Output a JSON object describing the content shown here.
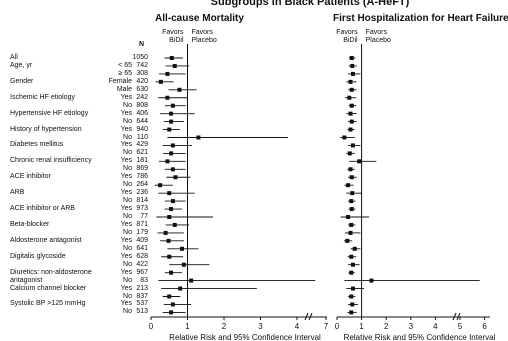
{
  "title": "Subgroups in Black Patients (A-HeFT)",
  "n_header": "N",
  "favors": {
    "left": [
      "Favors",
      "BiDil"
    ],
    "right": [
      "Favors",
      "Placebo"
    ]
  },
  "rows": [
    {
      "label": "All",
      "sub": "",
      "n": "1050"
    },
    {
      "label": "Age, yr",
      "sub": "< 65",
      "n": "742"
    },
    {
      "label": "",
      "sub": "≥ 65",
      "n": "308"
    },
    {
      "label": "Gender",
      "sub": "Female",
      "n": "420"
    },
    {
      "label": "",
      "sub": "Male",
      "n": "630"
    },
    {
      "label": "Ischemic HF etiology",
      "sub": "Yes",
      "n": "242"
    },
    {
      "label": "",
      "sub": "No",
      "n": "808"
    },
    {
      "label": "Hypertensive HF etiology",
      "sub": "Yes",
      "n": "406"
    },
    {
      "label": "",
      "sub": "No",
      "n": "644"
    },
    {
      "label": "History of hypertension",
      "sub": "Yes",
      "n": "940"
    },
    {
      "label": "",
      "sub": "No",
      "n": "110"
    },
    {
      "label": "Diabetes mellitus",
      "sub": "Yes",
      "n": "429"
    },
    {
      "label": "",
      "sub": "No",
      "n": "621"
    },
    {
      "label": "Chronic renal insufficiency",
      "sub": "Yes",
      "n": "181"
    },
    {
      "label": "",
      "sub": "No",
      "n": "869"
    },
    {
      "label": "ACE inhibitor",
      "sub": "Yes",
      "n": "786"
    },
    {
      "label": "",
      "sub": "No",
      "n": "264"
    },
    {
      "label": "ARB",
      "sub": "Yes",
      "n": "236"
    },
    {
      "label": "",
      "sub": "No",
      "n": "814"
    },
    {
      "label": "ACE inhibitor or ARB",
      "sub": "Yes",
      "n": "973"
    },
    {
      "label": "",
      "sub": "No",
      "n": "77"
    },
    {
      "label": "Beta-blocker",
      "sub": "Yes",
      "n": "871"
    },
    {
      "label": "",
      "sub": "No",
      "n": "179"
    },
    {
      "label": "Aldosterone antagonist",
      "sub": "Yes",
      "n": "409"
    },
    {
      "label": "",
      "sub": "No",
      "n": "641"
    },
    {
      "label": "Digitalis glycoside",
      "sub": "Yes",
      "n": "628"
    },
    {
      "label": "",
      "sub": "No",
      "n": "422"
    },
    {
      "label": "Diuretics: non-aldosterone\nantagonist",
      "sub": "Yes",
      "n": "967"
    },
    {
      "label": "",
      "sub": "No",
      "n": "83"
    },
    {
      "label": "Calcium channel blocker",
      "sub": "Yes",
      "n": "213"
    },
    {
      "label": "",
      "sub": "No",
      "n": "837"
    },
    {
      "label": "Systolic BP >125 mmHg",
      "sub": "Yes",
      "n": "537"
    },
    {
      "label": "",
      "sub": "No",
      "n": "513"
    }
  ],
  "chart_data": [
    {
      "type": "forest",
      "title": "All-cause Mortality",
      "xlabel": "Relative Risk and 95% Confidence Interval",
      "xticks": [
        "0",
        "1",
        "2",
        "3",
        "4",
        "7"
      ],
      "xlim": [
        0,
        4.5
      ],
      "axis_break": true,
      "reference_line": 1,
      "estimates": [
        {
          "rr": 0.57,
          "lo": 0.37,
          "hi": 0.87
        },
        {
          "rr": 0.65,
          "lo": 0.4,
          "hi": 1.05
        },
        {
          "rr": 0.45,
          "lo": 0.22,
          "hi": 0.95
        },
        {
          "rr": 0.27,
          "lo": 0.12,
          "hi": 0.62
        },
        {
          "rr": 0.78,
          "lo": 0.48,
          "hi": 1.25
        },
        {
          "rr": 0.45,
          "lo": 0.2,
          "hi": 1.0
        },
        {
          "rr": 0.6,
          "lo": 0.38,
          "hi": 0.95
        },
        {
          "rr": 0.55,
          "lo": 0.25,
          "hi": 1.2
        },
        {
          "rr": 0.55,
          "lo": 0.35,
          "hi": 0.9
        },
        {
          "rr": 0.5,
          "lo": 0.32,
          "hi": 0.8
        },
        {
          "rr": 1.3,
          "lo": 0.45,
          "hi": 3.75
        },
        {
          "rr": 0.6,
          "lo": 0.32,
          "hi": 1.12
        },
        {
          "rr": 0.55,
          "lo": 0.33,
          "hi": 0.95
        },
        {
          "rr": 0.45,
          "lo": 0.22,
          "hi": 0.95
        },
        {
          "rr": 0.6,
          "lo": 0.38,
          "hi": 0.95
        },
        {
          "rr": 0.67,
          "lo": 0.42,
          "hi": 1.08
        },
        {
          "rr": 0.25,
          "lo": 0.1,
          "hi": 0.6
        },
        {
          "rr": 0.5,
          "lo": 0.2,
          "hi": 1.2
        },
        {
          "rr": 0.6,
          "lo": 0.38,
          "hi": 0.95
        },
        {
          "rr": 0.55,
          "lo": 0.37,
          "hi": 0.85
        },
        {
          "rr": 0.5,
          "lo": 0.15,
          "hi": 1.7
        },
        {
          "rr": 0.65,
          "lo": 0.4,
          "hi": 1.05
        },
        {
          "rr": 0.4,
          "lo": 0.18,
          "hi": 0.9
        },
        {
          "rr": 0.48,
          "lo": 0.25,
          "hi": 0.9
        },
        {
          "rr": 0.85,
          "lo": 0.45,
          "hi": 1.3
        },
        {
          "rr": 0.5,
          "lo": 0.28,
          "hi": 0.88
        },
        {
          "rr": 0.9,
          "lo": 0.5,
          "hi": 1.6
        },
        {
          "rr": 0.55,
          "lo": 0.38,
          "hi": 0.85
        },
        {
          "rr": 1.1,
          "lo": 0.2,
          "hi": 4.5
        },
        {
          "rr": 0.8,
          "lo": 0.28,
          "hi": 2.9
        },
        {
          "rr": 0.5,
          "lo": 0.32,
          "hi": 0.8
        },
        {
          "rr": 0.6,
          "lo": 0.35,
          "hi": 1.1
        },
        {
          "rr": 0.55,
          "lo": 0.32,
          "hi": 0.95
        }
      ]
    },
    {
      "type": "forest",
      "title": "First Hospitalization for Heart Failure",
      "xlabel": "Relative Risk and 95% Confidence Interval",
      "xticks": [
        "0",
        "1",
        "2",
        "3",
        "4",
        "5",
        "6"
      ],
      "xlim": [
        0,
        6
      ],
      "axis_break": true,
      "reference_line": 1,
      "estimates": [
        {
          "rr": 0.6,
          "lo": 0.48,
          "hi": 0.75
        },
        {
          "rr": 0.62,
          "lo": 0.48,
          "hi": 0.8
        },
        {
          "rr": 0.65,
          "lo": 0.45,
          "hi": 0.95
        },
        {
          "rr": 0.55,
          "lo": 0.38,
          "hi": 0.8
        },
        {
          "rr": 0.6,
          "lo": 0.45,
          "hi": 0.8
        },
        {
          "rr": 0.5,
          "lo": 0.32,
          "hi": 0.78
        },
        {
          "rr": 0.6,
          "lo": 0.47,
          "hi": 0.78
        },
        {
          "rr": 0.55,
          "lo": 0.38,
          "hi": 0.8
        },
        {
          "rr": 0.6,
          "lo": 0.45,
          "hi": 0.8
        },
        {
          "rr": 0.55,
          "lo": 0.43,
          "hi": 0.72
        },
        {
          "rr": 0.3,
          "lo": 0.13,
          "hi": 0.72
        },
        {
          "rr": 0.65,
          "lo": 0.45,
          "hi": 0.95
        },
        {
          "rr": 0.52,
          "lo": 0.38,
          "hi": 0.72
        },
        {
          "rr": 0.9,
          "lo": 0.5,
          "hi": 1.6
        },
        {
          "rr": 0.55,
          "lo": 0.42,
          "hi": 0.72
        },
        {
          "rr": 0.6,
          "lo": 0.45,
          "hi": 0.8
        },
        {
          "rr": 0.45,
          "lo": 0.3,
          "hi": 0.68
        },
        {
          "rr": 0.62,
          "lo": 0.38,
          "hi": 1.0
        },
        {
          "rr": 0.58,
          "lo": 0.45,
          "hi": 0.75
        },
        {
          "rr": 0.6,
          "lo": 0.47,
          "hi": 0.75
        },
        {
          "rr": 0.45,
          "lo": 0.15,
          "hi": 1.3
        },
        {
          "rr": 0.58,
          "lo": 0.45,
          "hi": 0.75
        },
        {
          "rr": 0.55,
          "lo": 0.32,
          "hi": 0.95
        },
        {
          "rr": 0.42,
          "lo": 0.28,
          "hi": 0.62
        },
        {
          "rr": 0.72,
          "lo": 0.55,
          "hi": 0.95
        },
        {
          "rr": 0.58,
          "lo": 0.43,
          "hi": 0.78
        },
        {
          "rr": 0.65,
          "lo": 0.45,
          "hi": 0.92
        },
        {
          "rr": 0.58,
          "lo": 0.47,
          "hi": 0.72
        },
        {
          "rr": 1.4,
          "lo": 0.3,
          "hi": 5.8
        },
        {
          "rr": 0.65,
          "lo": 0.38,
          "hi": 1.1
        },
        {
          "rr": 0.58,
          "lo": 0.45,
          "hi": 0.75
        },
        {
          "rr": 0.62,
          "lo": 0.45,
          "hi": 0.85
        },
        {
          "rr": 0.58,
          "lo": 0.42,
          "hi": 0.8
        }
      ]
    }
  ]
}
